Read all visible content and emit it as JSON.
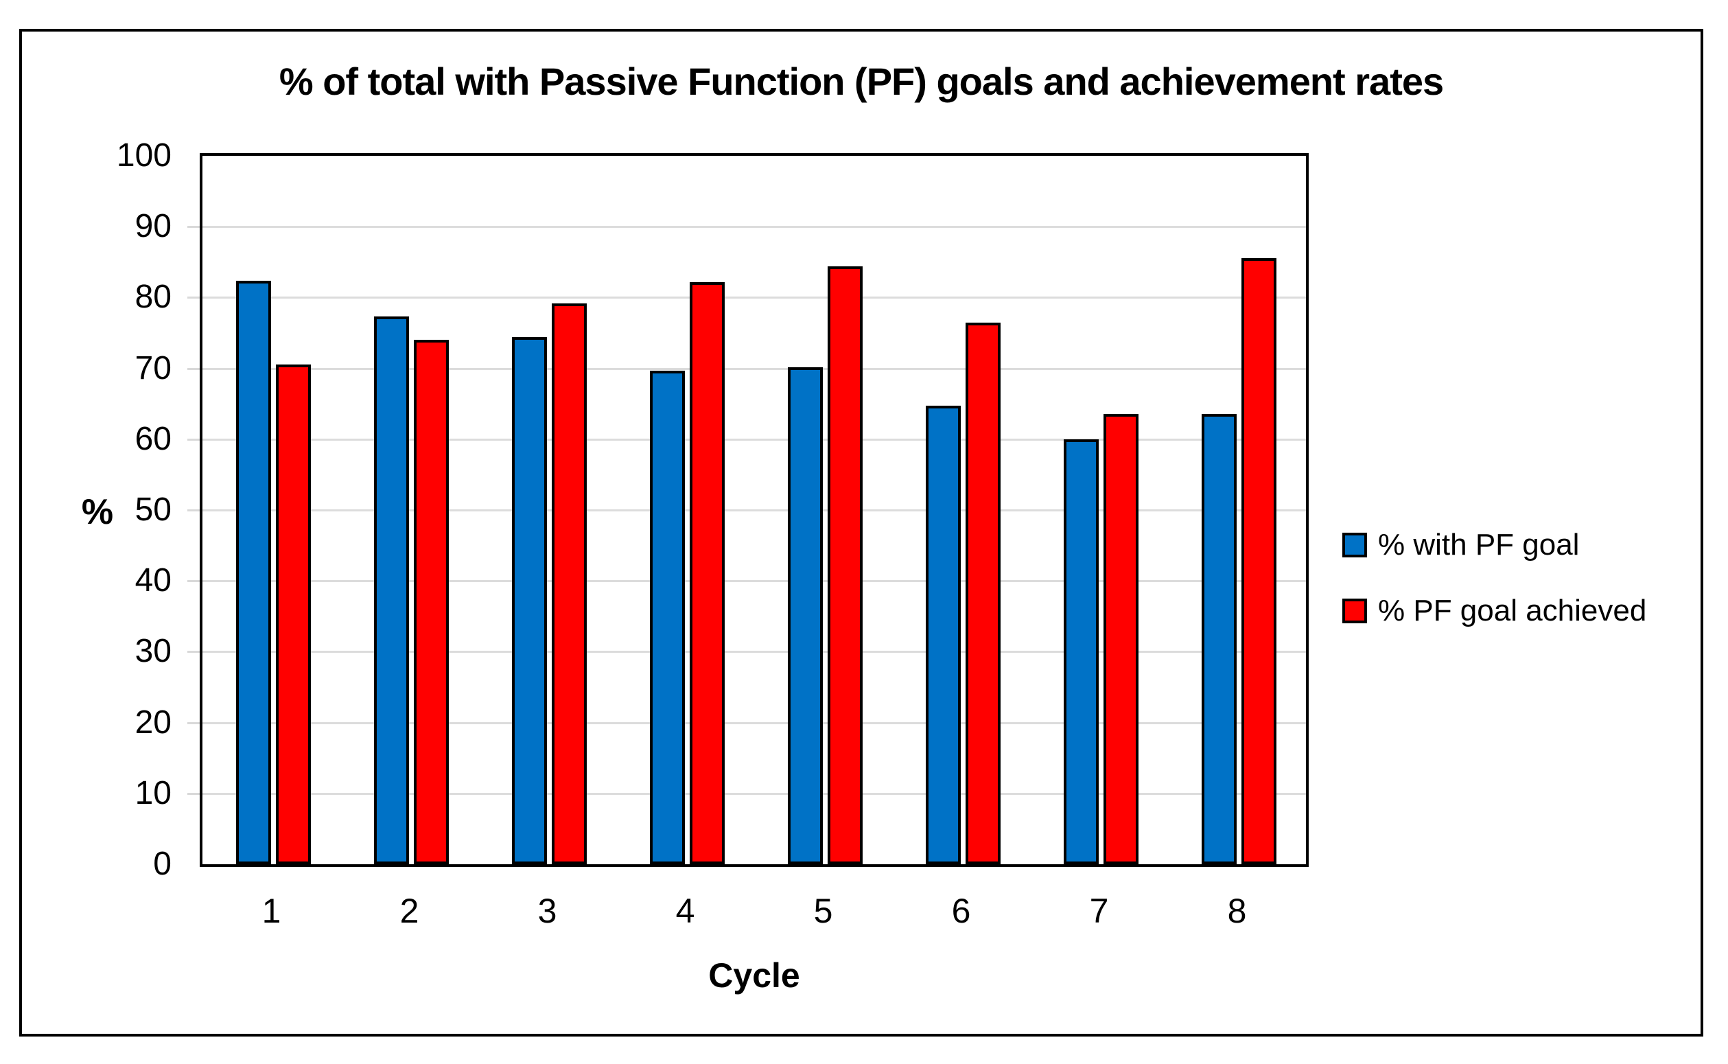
{
  "chart": {
    "title": "% of total with Passive Function (PF) goals and achievement rates",
    "x_axis_title": "Cycle",
    "y_axis_title": "%"
  },
  "chart_data": {
    "type": "bar",
    "title": "% of total with Passive Function (PF) goals and achievement rates",
    "xlabel": "Cycle",
    "ylabel": "%",
    "categories": [
      "1",
      "2",
      "3",
      "4",
      "5",
      "6",
      "7",
      "8"
    ],
    "series": [
      {
        "name": "% with PF goal",
        "color": "#0072C6",
        "values": [
          82.4,
          77.3,
          74.4,
          69.7,
          70.2,
          64.7,
          60.0,
          63.6
        ]
      },
      {
        "name": "% PF goal achieved",
        "color": "#FF0000",
        "values": [
          70.5,
          74.0,
          79.2,
          82.2,
          84.4,
          76.5,
          63.6,
          85.6
        ]
      }
    ],
    "ylim": [
      0,
      100
    ],
    "yticks": [
      0,
      10,
      20,
      30,
      40,
      50,
      60,
      70,
      80,
      90,
      100
    ],
    "grid": true,
    "gridline_color": "#DCDCDC",
    "legend_position": "right"
  }
}
